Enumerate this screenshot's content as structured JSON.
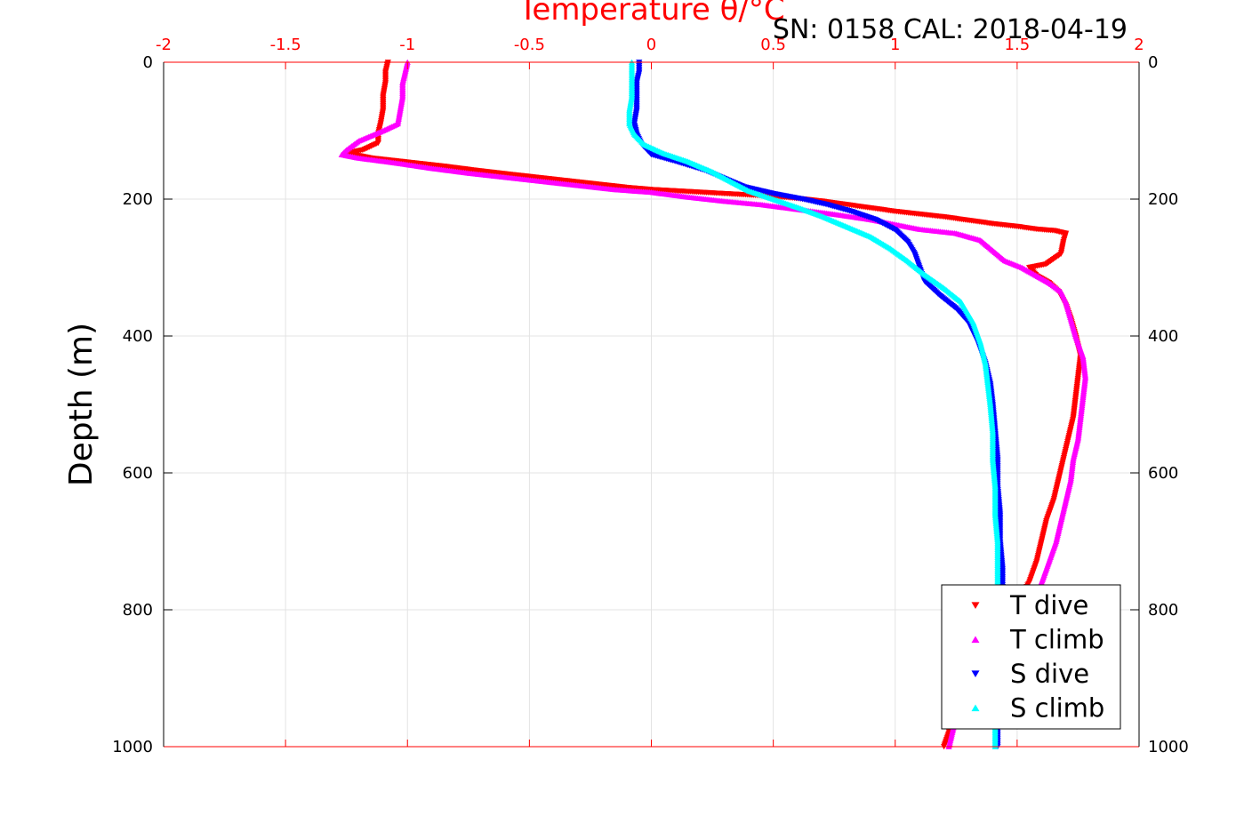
{
  "chart_data": {
    "type": "scatter",
    "title": "Temperature θ/°C",
    "subtitle": "SN: 0158  CAL: 2018-04-19",
    "ylabel": "Depth (m)",
    "xlabel": "",
    "xlim": [
      -2,
      2
    ],
    "ylim": [
      0,
      1000
    ],
    "y_reversed": true,
    "x_ticks": [
      "-2",
      "-1.5",
      "-1",
      "-0.5",
      "0",
      "0.5",
      "1",
      "1.5",
      "2"
    ],
    "y_ticks": [
      "0",
      "200",
      "400",
      "600",
      "800",
      "1000"
    ],
    "grid": true,
    "legend_position": "bottom-right",
    "series": [
      {
        "name": "T dive",
        "color": "#ff0000",
        "marker": "triangle-down",
        "points": [
          [
            -1.08,
            0
          ],
          [
            -1.09,
            15
          ],
          [
            -1.09,
            30
          ],
          [
            -1.1,
            50
          ],
          [
            -1.1,
            70
          ],
          [
            -1.11,
            90
          ],
          [
            -1.12,
            105
          ],
          [
            -1.12,
            118
          ],
          [
            -1.18,
            128
          ],
          [
            -1.25,
            133
          ],
          [
            -1.15,
            140
          ],
          [
            -1.0,
            146
          ],
          [
            -0.85,
            152
          ],
          [
            -0.72,
            158
          ],
          [
            -0.6,
            163
          ],
          [
            -0.5,
            167
          ],
          [
            -0.4,
            171
          ],
          [
            -0.3,
            175
          ],
          [
            -0.2,
            179
          ],
          [
            -0.1,
            183
          ],
          [
            0.0,
            186
          ],
          [
            0.1,
            188
          ],
          [
            0.2,
            190
          ],
          [
            0.3,
            192
          ],
          [
            0.4,
            194
          ],
          [
            0.5,
            196
          ],
          [
            0.6,
            199
          ],
          [
            0.7,
            203
          ],
          [
            0.8,
            208
          ],
          [
            0.9,
            213
          ],
          [
            1.0,
            218
          ],
          [
            1.1,
            222
          ],
          [
            1.2,
            226
          ],
          [
            1.3,
            231
          ],
          [
            1.4,
            236
          ],
          [
            1.5,
            240
          ],
          [
            1.58,
            244
          ],
          [
            1.65,
            246
          ],
          [
            1.7,
            250
          ],
          [
            1.69,
            262
          ],
          [
            1.68,
            280
          ],
          [
            1.62,
            295
          ],
          [
            1.55,
            300
          ],
          [
            1.58,
            312
          ],
          [
            1.63,
            322
          ],
          [
            1.67,
            335
          ],
          [
            1.7,
            355
          ],
          [
            1.72,
            375
          ],
          [
            1.74,
            400
          ],
          [
            1.76,
            430
          ],
          [
            1.75,
            460
          ],
          [
            1.74,
            490
          ],
          [
            1.73,
            520
          ],
          [
            1.71,
            550
          ],
          [
            1.69,
            580
          ],
          [
            1.67,
            610
          ],
          [
            1.65,
            640
          ],
          [
            1.62,
            670
          ],
          [
            1.6,
            700
          ],
          [
            1.58,
            730
          ],
          [
            1.55,
            760
          ],
          [
            1.5,
            790
          ],
          [
            1.45,
            820
          ],
          [
            1.4,
            850
          ],
          [
            1.35,
            880
          ],
          [
            1.3,
            910
          ],
          [
            1.26,
            940
          ],
          [
            1.23,
            970
          ],
          [
            1.2,
            1000
          ]
        ]
      },
      {
        "name": "T climb",
        "color": "#ff00ff",
        "marker": "triangle-up",
        "points": [
          [
            -1.0,
            0
          ],
          [
            -1.01,
            15
          ],
          [
            -1.02,
            30
          ],
          [
            -1.02,
            50
          ],
          [
            -1.03,
            70
          ],
          [
            -1.04,
            90
          ],
          [
            -1.1,
            100
          ],
          [
            -1.2,
            115
          ],
          [
            -1.25,
            128
          ],
          [
            -1.27,
            135
          ],
          [
            -1.2,
            140
          ],
          [
            -1.05,
            147
          ],
          [
            -0.9,
            155
          ],
          [
            -0.75,
            162
          ],
          [
            -0.6,
            168
          ],
          [
            -0.45,
            174
          ],
          [
            -0.3,
            180
          ],
          [
            -0.15,
            186
          ],
          [
            0.0,
            190
          ],
          [
            0.15,
            197
          ],
          [
            0.3,
            203
          ],
          [
            0.45,
            208
          ],
          [
            0.6,
            215
          ],
          [
            0.75,
            222
          ],
          [
            0.9,
            230
          ],
          [
            1.0,
            237
          ],
          [
            1.1,
            244
          ],
          [
            1.25,
            250
          ],
          [
            1.35,
            260
          ],
          [
            1.4,
            275
          ],
          [
            1.45,
            290
          ],
          [
            1.52,
            300
          ],
          [
            1.58,
            312
          ],
          [
            1.63,
            322
          ],
          [
            1.68,
            335
          ],
          [
            1.7,
            350
          ],
          [
            1.72,
            375
          ],
          [
            1.74,
            400
          ],
          [
            1.77,
            430
          ],
          [
            1.78,
            460
          ],
          [
            1.77,
            490
          ],
          [
            1.76,
            520
          ],
          [
            1.75,
            550
          ],
          [
            1.73,
            580
          ],
          [
            1.72,
            610
          ],
          [
            1.7,
            640
          ],
          [
            1.68,
            670
          ],
          [
            1.66,
            700
          ],
          [
            1.63,
            730
          ],
          [
            1.6,
            760
          ],
          [
            1.55,
            790
          ],
          [
            1.5,
            820
          ],
          [
            1.45,
            850
          ],
          [
            1.39,
            880
          ],
          [
            1.34,
            910
          ],
          [
            1.28,
            940
          ],
          [
            1.24,
            970
          ],
          [
            1.22,
            1000
          ]
        ]
      },
      {
        "name": "S dive",
        "color": "#0000ff",
        "marker": "triangle-down",
        "points": [
          [
            -0.05,
            0
          ],
          [
            -0.05,
            15
          ],
          [
            -0.06,
            30
          ],
          [
            -0.06,
            50
          ],
          [
            -0.06,
            70
          ],
          [
            -0.07,
            90
          ],
          [
            -0.06,
            105
          ],
          [
            -0.04,
            120
          ],
          [
            0.0,
            135
          ],
          [
            0.1,
            145
          ],
          [
            0.22,
            158
          ],
          [
            0.3,
            170
          ],
          [
            0.38,
            182
          ],
          [
            0.5,
            192
          ],
          [
            0.62,
            200
          ],
          [
            0.72,
            208
          ],
          [
            0.82,
            218
          ],
          [
            0.92,
            230
          ],
          [
            1.0,
            245
          ],
          [
            1.05,
            262
          ],
          [
            1.08,
            280
          ],
          [
            1.1,
            300
          ],
          [
            1.12,
            320
          ],
          [
            1.18,
            340
          ],
          [
            1.25,
            360
          ],
          [
            1.3,
            380
          ],
          [
            1.34,
            410
          ],
          [
            1.37,
            440
          ],
          [
            1.39,
            470
          ],
          [
            1.4,
            500
          ],
          [
            1.41,
            540
          ],
          [
            1.42,
            580
          ],
          [
            1.42,
            620
          ],
          [
            1.43,
            660
          ],
          [
            1.43,
            700
          ],
          [
            1.44,
            740
          ],
          [
            1.44,
            780
          ],
          [
            1.43,
            820
          ],
          [
            1.43,
            860
          ],
          [
            1.43,
            900
          ],
          [
            1.42,
            940
          ],
          [
            1.42,
            970
          ],
          [
            1.42,
            1000
          ]
        ]
      },
      {
        "name": "S climb",
        "color": "#00ffff",
        "marker": "triangle-up",
        "points": [
          [
            -0.08,
            0
          ],
          [
            -0.08,
            15
          ],
          [
            -0.08,
            30
          ],
          [
            -0.08,
            50
          ],
          [
            -0.09,
            70
          ],
          [
            -0.09,
            90
          ],
          [
            -0.07,
            105
          ],
          [
            -0.03,
            120
          ],
          [
            0.05,
            133
          ],
          [
            0.15,
            145
          ],
          [
            0.25,
            160
          ],
          [
            0.33,
            175
          ],
          [
            0.4,
            188
          ],
          [
            0.5,
            200
          ],
          [
            0.6,
            212
          ],
          [
            0.7,
            225
          ],
          [
            0.8,
            240
          ],
          [
            0.9,
            255
          ],
          [
            0.98,
            272
          ],
          [
            1.05,
            290
          ],
          [
            1.12,
            310
          ],
          [
            1.2,
            330
          ],
          [
            1.27,
            350
          ],
          [
            1.32,
            380
          ],
          [
            1.35,
            410
          ],
          [
            1.37,
            440
          ],
          [
            1.38,
            470
          ],
          [
            1.39,
            500
          ],
          [
            1.4,
            540
          ],
          [
            1.4,
            580
          ],
          [
            1.41,
            620
          ],
          [
            1.41,
            660
          ],
          [
            1.42,
            700
          ],
          [
            1.42,
            740
          ],
          [
            1.42,
            780
          ],
          [
            1.42,
            820
          ],
          [
            1.42,
            860
          ],
          [
            1.42,
            900
          ],
          [
            1.41,
            940
          ],
          [
            1.41,
            970
          ],
          [
            1.41,
            1000
          ]
        ]
      }
    ]
  }
}
